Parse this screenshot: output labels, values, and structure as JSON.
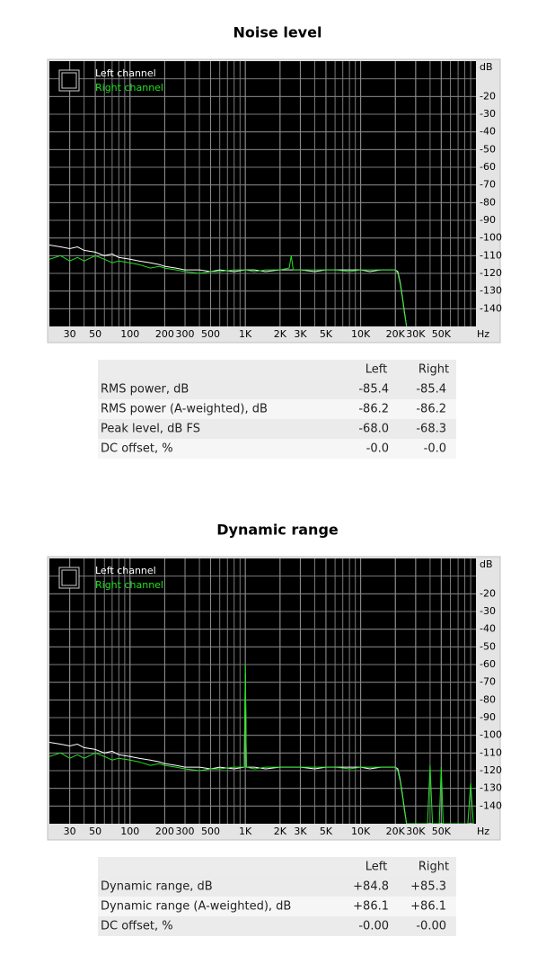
{
  "chart_data": [
    {
      "type": "line",
      "title": "Noise level",
      "xlabel": "Hz",
      "ylabel": "dB",
      "log_x": true,
      "grid": true,
      "legend": "upper left",
      "x": [
        20,
        25,
        30,
        35,
        40,
        50,
        60,
        70,
        80,
        100,
        120,
        150,
        180,
        200,
        250,
        300,
        400,
        500,
        600,
        800,
        1000,
        1200,
        1500,
        2000,
        2400,
        2500,
        2600,
        3000,
        4000,
        5000,
        6000,
        8000,
        10000,
        12000,
        15000,
        18000,
        20000,
        21000,
        22000,
        23000,
        24000,
        25000
      ],
      "series": [
        {
          "name": "Left channel",
          "color": "#ffffff",
          "values": [
            -104,
            -105,
            -106,
            -105,
            -107,
            -108,
            -110,
            -109,
            -111,
            -112,
            -113,
            -114,
            -115,
            -116,
            -117,
            -118,
            -118,
            -119,
            -118,
            -119,
            -118,
            -118,
            -119,
            -118,
            -118,
            -118,
            -118,
            -118,
            -119,
            -118,
            -118,
            -118,
            -118,
            -119,
            -118,
            -118,
            -118,
            -119,
            -125,
            -133,
            -142,
            -150
          ]
        },
        {
          "name": "Right channel",
          "color": "#22e022",
          "values": [
            -112,
            -110,
            -113,
            -111,
            -113,
            -110,
            -112,
            -114,
            -113,
            -114,
            -115,
            -117,
            -116,
            -117,
            -118,
            -119,
            -120,
            -119,
            -119,
            -118,
            -118,
            -119,
            -118,
            -118,
            -117,
            -110,
            -118,
            -118,
            -118,
            -118,
            -118,
            -119,
            -118,
            -118,
            -118,
            -118,
            -118,
            -120,
            -126,
            -134,
            -143,
            -150
          ]
        }
      ],
      "xlim": [
        20,
        100000
      ],
      "xticks": [
        30,
        50,
        100,
        200,
        300,
        500,
        {
          "value": 1000,
          "label": "1K"
        },
        {
          "value": 2000,
          "label": "2K"
        },
        {
          "value": 3000,
          "label": "3K"
        },
        {
          "value": 5000,
          "label": "5K"
        },
        {
          "value": 10000,
          "label": "10K"
        },
        {
          "value": 20000,
          "label": "20K"
        },
        {
          "value": 30000,
          "label": "30K"
        },
        {
          "value": 50000,
          "label": "50K"
        }
      ],
      "ylim": [
        -150,
        0
      ],
      "yticks": [
        -20,
        -30,
        -40,
        -50,
        -60,
        -70,
        -80,
        -90,
        -100,
        -110,
        -120,
        -130,
        -140
      ]
    },
    {
      "type": "line",
      "title": "Dynamic range",
      "xlabel": "Hz",
      "ylabel": "dB",
      "log_x": true,
      "grid": true,
      "legend": "upper left",
      "x": [
        20,
        25,
        30,
        35,
        40,
        50,
        60,
        70,
        80,
        100,
        120,
        150,
        180,
        200,
        250,
        300,
        400,
        500,
        600,
        800,
        980,
        1000,
        1020,
        1200,
        1500,
        2000,
        3000,
        4000,
        5000,
        6000,
        8000,
        10000,
        12000,
        15000,
        18000,
        20000,
        21000,
        22000,
        23000,
        24000,
        25000,
        38000,
        40000,
        42000,
        48000,
        50000,
        52000,
        85000,
        90000,
        95000
      ],
      "series": [
        {
          "name": "Left channel",
          "color": "#ffffff",
          "values": [
            -104,
            -105,
            -106,
            -105,
            -107,
            -108,
            -110,
            -109,
            -111,
            -112,
            -113,
            -114,
            -115,
            -116,
            -117,
            -118,
            -118,
            -119,
            -118,
            -119,
            -118,
            -65,
            -118,
            -118,
            -119,
            -118,
            -118,
            -119,
            -118,
            -118,
            -118,
            -118,
            -119,
            -118,
            -118,
            -118,
            -119,
            -125,
            -133,
            -142,
            -150,
            -150,
            -150,
            -150,
            -150,
            -150,
            -150,
            -150,
            -150,
            -150
          ]
        },
        {
          "name": "Right channel",
          "color": "#22e022",
          "values": [
            -112,
            -110,
            -113,
            -111,
            -113,
            -110,
            -112,
            -114,
            -113,
            -114,
            -115,
            -117,
            -116,
            -117,
            -118,
            -119,
            -120,
            -119,
            -119,
            -118,
            -118,
            -60,
            -118,
            -119,
            -118,
            -118,
            -118,
            -118,
            -118,
            -118,
            -119,
            -118,
            -118,
            -118,
            -118,
            -118,
            -120,
            -126,
            -134,
            -143,
            -150,
            -150,
            -117,
            -150,
            -150,
            -118,
            -150,
            -150,
            -127,
            -150
          ]
        }
      ],
      "xlim": [
        20,
        100000
      ],
      "xticks": [
        30,
        50,
        100,
        200,
        300,
        500,
        {
          "value": 1000,
          "label": "1K"
        },
        {
          "value": 2000,
          "label": "2K"
        },
        {
          "value": 3000,
          "label": "3K"
        },
        {
          "value": 5000,
          "label": "5K"
        },
        {
          "value": 10000,
          "label": "10K"
        },
        {
          "value": 20000,
          "label": "20K"
        },
        {
          "value": 30000,
          "label": "30K"
        },
        {
          "value": 50000,
          "label": "50K"
        }
      ],
      "ylim": [
        -150,
        0
      ],
      "yticks": [
        -20,
        -30,
        -40,
        -50,
        -60,
        -70,
        -80,
        -90,
        -100,
        -110,
        -120,
        -130,
        -140
      ]
    }
  ],
  "tables": [
    {
      "columns": [
        "Left",
        "Right"
      ],
      "rows": [
        {
          "label": "RMS power, dB",
          "values": [
            "-85.4",
            "-85.4"
          ]
        },
        {
          "label": "RMS power (A-weighted), dB",
          "values": [
            "-86.2",
            "-86.2"
          ]
        },
        {
          "label": "Peak level, dB FS",
          "values": [
            "-68.0",
            "-68.3"
          ]
        },
        {
          "label": "DC offset, %",
          "values": [
            "-0.0",
            "-0.0"
          ]
        }
      ]
    },
    {
      "columns": [
        "Left",
        "Right"
      ],
      "rows": [
        {
          "label": "Dynamic range, dB",
          "values": [
            "+84.8",
            "+85.3"
          ]
        },
        {
          "label": "Dynamic range (A-weighted), dB",
          "values": [
            "+86.1",
            "+86.1"
          ]
        },
        {
          "label": "DC offset, %",
          "values": [
            "-0.00",
            "-0.00"
          ]
        }
      ]
    }
  ]
}
